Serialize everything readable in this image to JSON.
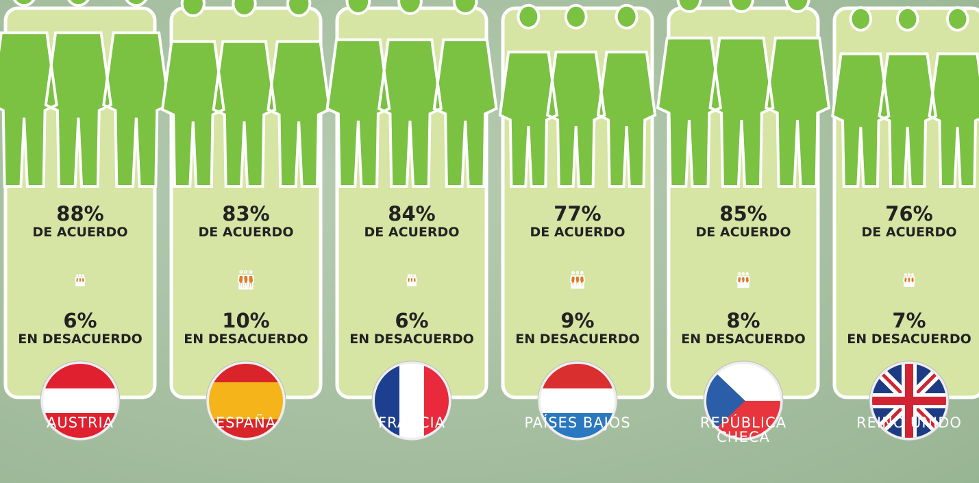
{
  "chart_data": {
    "type": "pictograph",
    "categories": [
      "AUSTRIA",
      "ESPAÑA",
      "FRANCIA",
      "PAÍSES BAJOS",
      "REPÚBLICA CHECA",
      "REINO UNIDO"
    ],
    "series": [
      {
        "name": "DE ACUERDO",
        "color": "#7bc142",
        "values": [
          88,
          83,
          84,
          77,
          85,
          76
        ],
        "value_labels": [
          "88%",
          "83%",
          "84%",
          "77%",
          "85%",
          "76%"
        ]
      },
      {
        "name": "EN DESACUERDO",
        "color": "#e07b2a",
        "values": [
          6,
          10,
          6,
          9,
          8,
          7
        ],
        "value_labels": [
          "6%",
          "10%",
          "6%",
          "9%",
          "8%",
          "7%"
        ]
      }
    ]
  }
}
